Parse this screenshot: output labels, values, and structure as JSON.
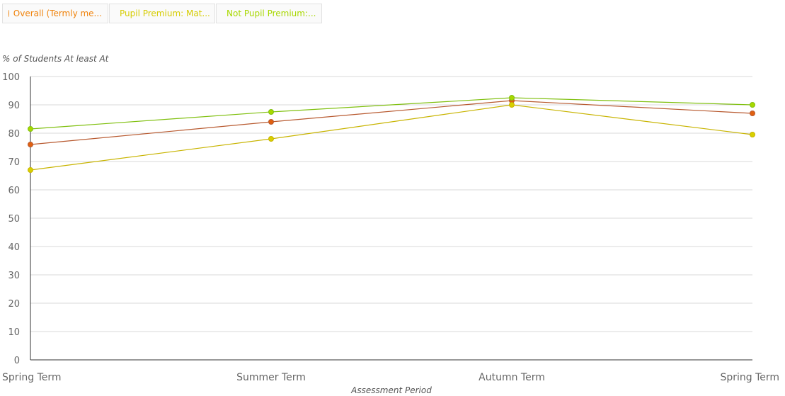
{
  "legend": [
    {
      "label": "Overall (Termly me...",
      "color": "#f0820a"
    },
    {
      "label": "Pupil Premium: Mat...",
      "color": "#e0d400"
    },
    {
      "label": "Not Pupil Premium:...",
      "color": "#b4e000"
    }
  ],
  "chart_data": {
    "type": "line",
    "ylabel": "% of Students At least At",
    "xlabel": "Assessment Period",
    "ylim": [
      0,
      100
    ],
    "yticks": [
      0,
      10,
      20,
      30,
      40,
      50,
      60,
      70,
      80,
      90,
      100
    ],
    "categories": [
      "Spring Term",
      "Summer Term",
      "Autumn Term",
      "Spring Term"
    ],
    "grid": true,
    "legend_position": "top-left",
    "series": [
      {
        "name": "Overall (Termly me...",
        "line_color": "#b85a30",
        "marker_color": "#e06010",
        "values": [
          76,
          84,
          91.5,
          87
        ]
      },
      {
        "name": "Pupil Premium: Mat...",
        "line_color": "#c8b400",
        "marker_color": "#d8d000",
        "values": [
          67,
          78,
          90,
          79.5
        ]
      },
      {
        "name": "Not Pupil Premium:...",
        "line_color": "#80c010",
        "marker_color": "#a8d800",
        "values": [
          81.5,
          87.5,
          92.5,
          90
        ]
      }
    ]
  }
}
